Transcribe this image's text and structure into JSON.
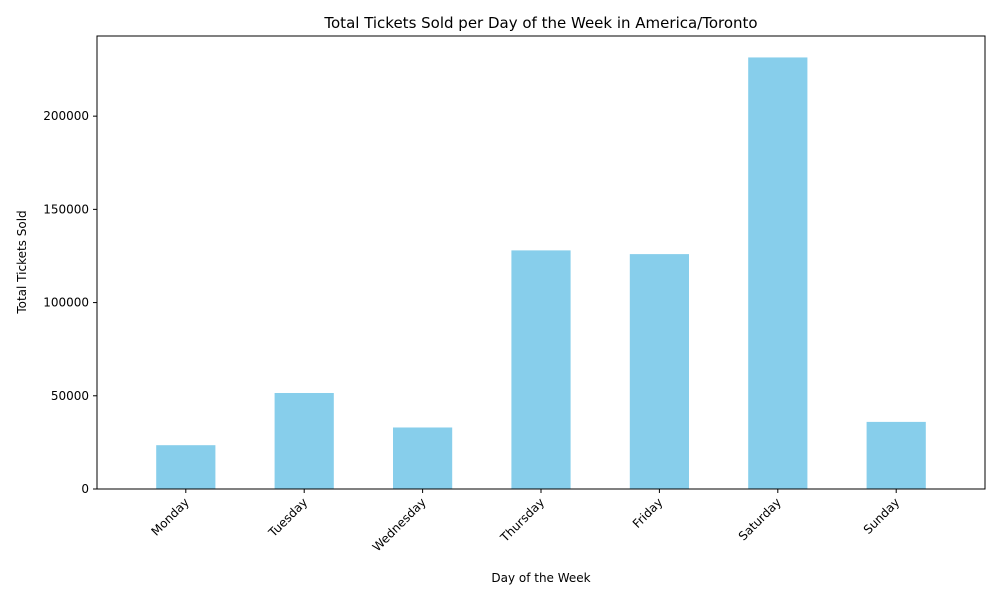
{
  "chart_data": {
    "type": "bar",
    "title": "Total Tickets Sold per Day of the Week in America/Toronto",
    "xlabel": "Day of the Week",
    "ylabel": "Total Tickets Sold",
    "categories": [
      "Monday",
      "Tuesday",
      "Wednesday",
      "Thursday",
      "Friday",
      "Saturday",
      "Sunday"
    ],
    "values": [
      23500,
      51500,
      33000,
      128000,
      126000,
      231500,
      36000
    ],
    "yticks": [
      0,
      50000,
      100000,
      150000,
      200000
    ],
    "ylim": [
      0,
      243000
    ],
    "grid": false,
    "bar_color": "#87ceeb"
  }
}
